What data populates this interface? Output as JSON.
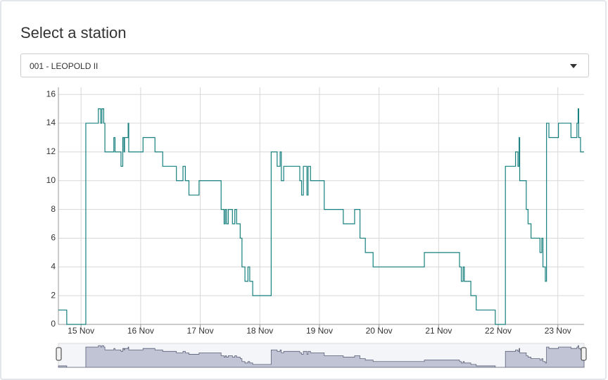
{
  "header": {
    "title": "Select a station"
  },
  "select": {
    "value": "001 - LEOPOLD II"
  },
  "chart_data": {
    "type": "line",
    "step": true,
    "color": "#17807e",
    "grid": true,
    "x": [
      14.62,
      14.76,
      15.08,
      15.29,
      15.33,
      15.35,
      15.38,
      15.4,
      15.55,
      15.57,
      15.67,
      15.7,
      15.72,
      15.73,
      15.79,
      15.8,
      16.04,
      16.24,
      16.37,
      16.6,
      16.71,
      16.75,
      16.81,
      16.98,
      17.35,
      17.4,
      17.42,
      17.44,
      17.47,
      17.54,
      17.58,
      17.61,
      17.67,
      17.7,
      17.75,
      17.8,
      17.83,
      17.88,
      18.19,
      18.29,
      18.34,
      18.36,
      18.4,
      18.67,
      18.7,
      18.73,
      18.79,
      18.81,
      18.85,
      19.08,
      19.4,
      19.59,
      19.68,
      19.77,
      19.9,
      20.76,
      21.35,
      21.38,
      21.41,
      21.43,
      21.54,
      21.63,
      21.95,
      22.12,
      22.29,
      22.33,
      22.35,
      22.36,
      22.47,
      22.5,
      22.55,
      22.7,
      22.73,
      22.75,
      22.79,
      22.81,
      22.85,
      23.01,
      23.22,
      23.32,
      23.34,
      23.35,
      23.38,
      23.44
    ],
    "values": [
      1,
      0,
      14,
      15,
      14,
      15,
      14,
      12,
      13,
      12,
      11,
      13,
      12,
      13,
      14,
      12,
      13,
      12,
      11,
      10,
      11,
      10,
      9,
      10,
      8,
      7,
      8,
      7,
      8,
      7,
      8,
      7,
      6,
      4,
      3,
      4,
      3,
      2,
      12,
      11,
      12,
      10,
      11,
      10,
      9,
      11,
      9,
      11,
      10,
      8,
      7,
      8,
      6,
      5,
      4,
      5,
      4,
      3,
      4,
      3,
      2,
      1,
      0,
      11,
      12,
      11,
      13,
      10,
      8,
      7,
      6,
      5,
      6,
      4,
      3,
      14,
      13,
      14,
      13,
      14,
      15,
      13,
      12,
      12
    ],
    "xlim": [
      14.62,
      23.44
    ],
    "xticks": [
      {
        "value": 15,
        "label": "15 Nov"
      },
      {
        "value": 16,
        "label": "16 Nov"
      },
      {
        "value": 17,
        "label": "17 Nov"
      },
      {
        "value": 18,
        "label": "18 Nov"
      },
      {
        "value": 19,
        "label": "19 Nov"
      },
      {
        "value": 20,
        "label": "20 Nov"
      },
      {
        "value": 21,
        "label": "21 Nov"
      },
      {
        "value": 22,
        "label": "22 Nov"
      },
      {
        "value": 23,
        "label": "23 Nov"
      }
    ],
    "ylim": [
      0,
      16.5
    ],
    "yticks": [
      0,
      2,
      4,
      6,
      8,
      10,
      12,
      14,
      16
    ]
  }
}
